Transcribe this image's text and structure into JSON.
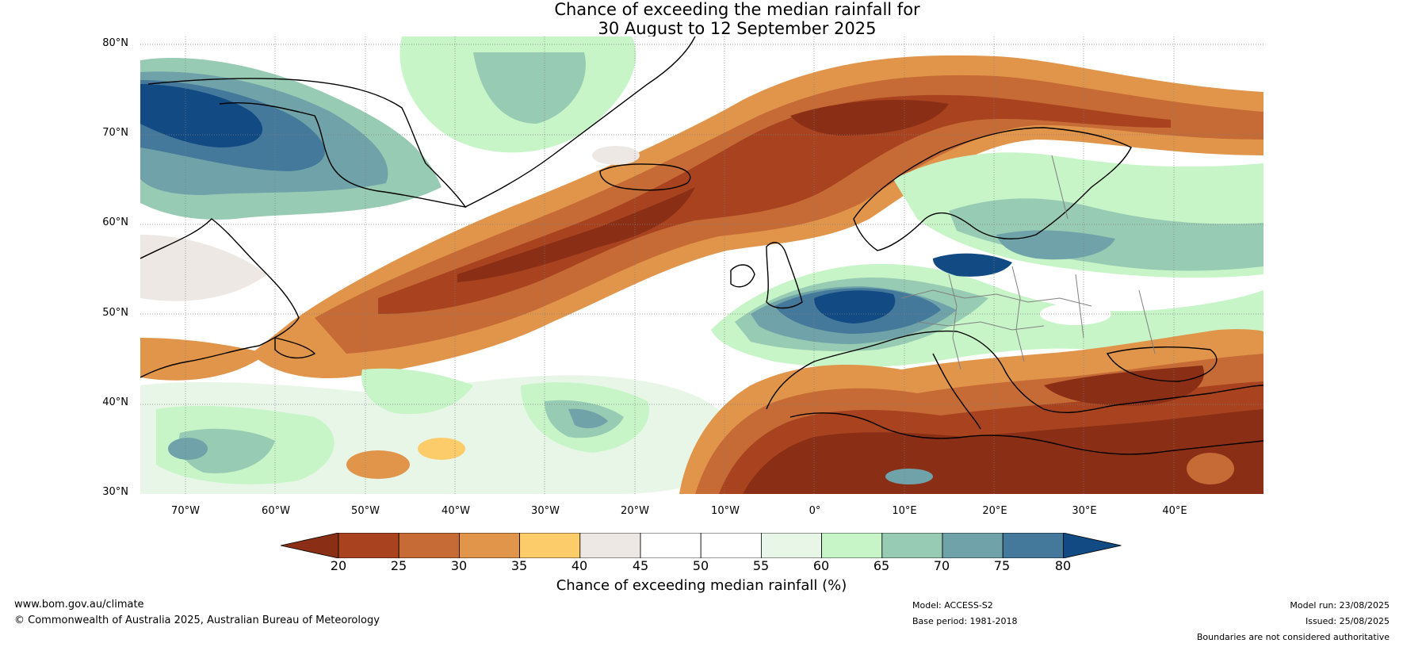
{
  "title": {
    "line1": "Chance of exceeding the median rainfall for",
    "line2": "30 August to 12 September 2025"
  },
  "map": {
    "lat_labels": [
      "80°N",
      "70°N",
      "60°N",
      "50°N",
      "40°N",
      "30°N"
    ],
    "lon_labels": [
      "70°W",
      "60°W",
      "50°W",
      "40°W",
      "30°W",
      "20°W",
      "10°W",
      "0°",
      "10°E",
      "20°E",
      "30°E",
      "40°E"
    ],
    "extent": {
      "lon_min": -75,
      "lon_max": 50,
      "lat_min": 30,
      "lat_max": 81
    },
    "categories": [
      {
        "range": "<20",
        "color": "#8a2e16"
      },
      {
        "range": "20-25",
        "color": "#a9431f"
      },
      {
        "range": "25-30",
        "color": "#c66a36"
      },
      {
        "range": "30-35",
        "color": "#e1954a"
      },
      {
        "range": "35-40",
        "color": "#fdcc6a"
      },
      {
        "range": "40-45",
        "color": "#ede8e3"
      },
      {
        "range": "45-50",
        "color": "#ffffff"
      },
      {
        "range": "50-55",
        "color": "#ffffff"
      },
      {
        "range": "55-60",
        "color": "#e8f6e8"
      },
      {
        "range": "60-65",
        "color": "#c7f5c8"
      },
      {
        "range": "65-70",
        "color": "#98cbb3"
      },
      {
        "range": "70-75",
        "color": "#6fa3a9"
      },
      {
        "range": "75-80",
        "color": "#44799b"
      },
      {
        "range": ">80",
        "color": "#124a83"
      }
    ]
  },
  "colorbar": {
    "ticks": [
      "20",
      "25",
      "30",
      "35",
      "40",
      "45",
      "50",
      "55",
      "60",
      "65",
      "70",
      "75",
      "80"
    ],
    "label": "Chance of exceeding median rainfall (%)"
  },
  "footer": {
    "website": "www.bom.gov.au/climate",
    "copyright": "© Commonwealth of Australia 2025, Australian Bureau of Meteorology",
    "model": "Model: ACCESS-S2",
    "base_period": "Base period: 1981-2018",
    "model_run": "Model run: 23/08/2025",
    "issued": "Issued: 25/08/2025",
    "disclaimer": "Boundaries are not considered authoritative"
  }
}
